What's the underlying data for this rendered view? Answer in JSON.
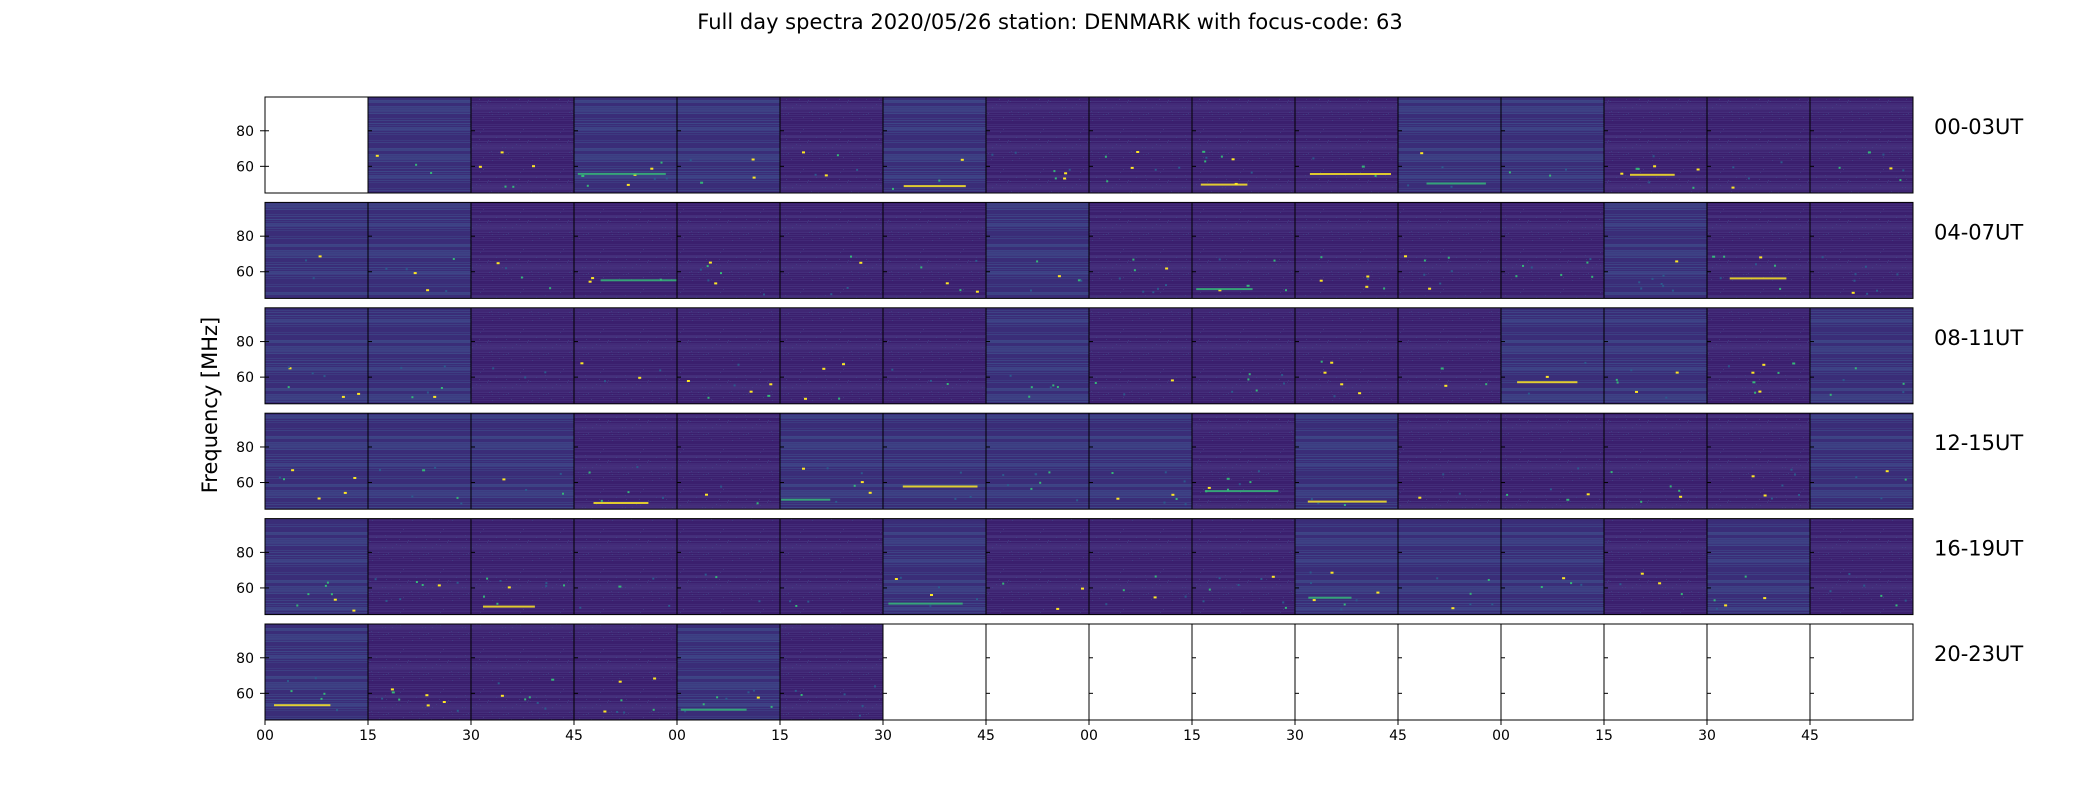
{
  "title": "Full day spectra 2020/05/26 station: DENMARK with focus-code: 63",
  "chart_data": {
    "type": "heatmap",
    "title": "Full day spectra 2020/05/26 station: DENMARK with focus-code: 63",
    "ylabel": "Frequency [MHz]",
    "xlabel": "",
    "ylim": [
      45,
      99
    ],
    "y_ticks": [
      "60",
      "80"
    ],
    "y_tick_values": [
      60,
      80
    ],
    "x_tick_labels": [
      "00",
      "15",
      "30",
      "45",
      "00",
      "15",
      "30",
      "45",
      "00",
      "15",
      "30",
      "45",
      "00",
      "15",
      "30",
      "45"
    ],
    "colormap": "viridis",
    "rows": [
      {
        "label": "00-03UT",
        "panels_with_data": [
          false,
          true,
          true,
          true,
          true,
          true,
          true,
          true,
          true,
          true,
          true,
          true,
          true,
          true,
          true,
          true
        ]
      },
      {
        "label": "04-07UT",
        "panels_with_data": [
          true,
          true,
          true,
          true,
          true,
          true,
          true,
          true,
          true,
          true,
          true,
          true,
          true,
          true,
          true,
          true
        ]
      },
      {
        "label": "08-11UT",
        "panels_with_data": [
          true,
          true,
          true,
          true,
          true,
          true,
          true,
          true,
          true,
          true,
          true,
          true,
          true,
          true,
          true,
          true
        ]
      },
      {
        "label": "12-15UT",
        "panels_with_data": [
          true,
          true,
          true,
          true,
          true,
          true,
          true,
          true,
          true,
          true,
          true,
          true,
          true,
          true,
          true,
          true
        ]
      },
      {
        "label": "16-19UT",
        "panels_with_data": [
          true,
          true,
          true,
          true,
          true,
          true,
          true,
          true,
          true,
          true,
          true,
          true,
          true,
          true,
          true,
          true
        ]
      },
      {
        "label": "20-23UT",
        "panels_with_data": [
          true,
          true,
          true,
          true,
          true,
          true,
          false,
          false,
          false,
          false,
          false,
          false,
          false,
          false,
          false,
          false
        ]
      }
    ],
    "colors": {
      "background": "#3b1f6e",
      "emission_low": "#2c5a8c",
      "emission_mid": "#35b779",
      "emission_high": "#fde725"
    }
  }
}
